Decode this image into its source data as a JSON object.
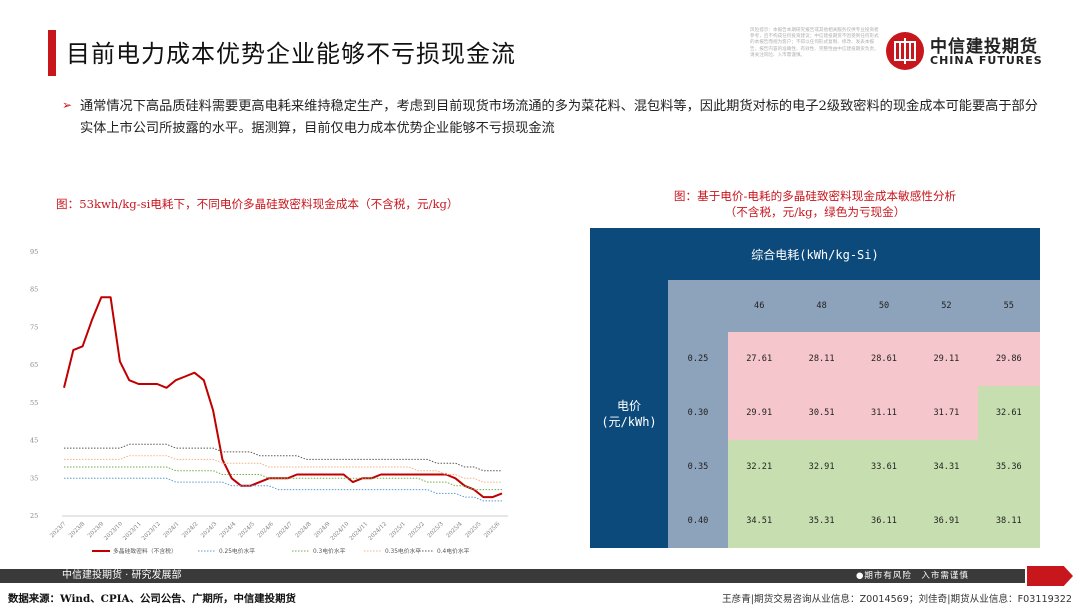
{
  "header": {
    "title": "目前电力成本优势企业能够不亏损现金流",
    "disclaimer": "风险提示：本报告本期研究报告或其他相关服务仅供专业投资者参考，且不构成任何投资建议；中信建投期货不因受到任何形式的本报告而视为客户；不得以任何形式复制、修改、发表本报告，报告内容的准确性、有效性、完整性由中信建投期货负责，请关注风险、入市需谨慎。",
    "disclaimer_label": "风险提示",
    "logo_cn": "中信建投期货",
    "logo_en": "CHINA FUTURES"
  },
  "bullet": {
    "symbol": "➢",
    "text": "通常情况下高品质硅料需要更高电耗来维持稳定生产，考虑到目前现货市场流通的多为菜花料、混包料等，因此期货对标的电子2级致密料的现金成本可能要高于部分实体上市公司所披露的水平。据测算，目前仅电力成本优势企业能够不亏损现金流"
  },
  "chart_title": "图：53kwh/kg-si电耗下，不同电价多晶硅致密料现金成本（不含税，元/kg）",
  "table_title_line1": "图：基于电价-电耗的多晶硅致密料现金成本敏感性分析",
  "table_title_line2": "（不含税，元/kg，绿色为亏现金）",
  "chart_data": {
    "type": "line",
    "y_ticks": [
      "25",
      "35",
      "45",
      "55",
      "65",
      "75",
      "85",
      "95"
    ],
    "ylim": [
      25,
      95
    ],
    "x_ticks": [
      "2023/7",
      "2023/8",
      "2023/9",
      "2023/10",
      "2023/11",
      "2023/12",
      "2024/1",
      "2024/2",
      "2024/3",
      "2024/4",
      "2024/5",
      "2024/6",
      "2024/7",
      "2024/8",
      "2024/9",
      "2024/10",
      "2024/11",
      "2024/12",
      "2025/1",
      "2025/2",
      "2025/3",
      "2025/4",
      "2025/5",
      "2025/6"
    ],
    "series": [
      {
        "name": "多晶硅致密料（不含税）",
        "color": "#c00000",
        "style": "solid",
        "values": [
          59,
          69,
          70,
          77,
          83,
          83,
          66,
          61,
          60,
          60,
          60,
          59,
          61,
          62,
          63,
          61,
          53,
          40,
          35,
          33,
          33,
          34,
          35,
          35,
          35,
          36,
          36,
          36,
          36,
          36,
          36,
          34,
          35,
          35,
          36,
          36,
          36,
          36,
          36,
          36,
          36,
          36,
          35,
          33,
          32,
          30,
          30,
          31
        ]
      },
      {
        "name": "0.25电价水平",
        "color": "#5b9bd5",
        "style": "dotted",
        "values": [
          35,
          35,
          35,
          35,
          35,
          35,
          35,
          35,
          35,
          35,
          35,
          35,
          34,
          34,
          34,
          34,
          34,
          34,
          33,
          33,
          33,
          33,
          33,
          32,
          32,
          32,
          32,
          32,
          32,
          32,
          32,
          32,
          32,
          32,
          32,
          32,
          32,
          32,
          32,
          32,
          31,
          31,
          31,
          30,
          30,
          29,
          29,
          29
        ]
      },
      {
        "name": "0.3电价水平",
        "color": "#70ad47",
        "style": "dotted",
        "values": [
          38,
          38,
          38,
          38,
          38,
          38,
          38,
          38,
          38,
          38,
          38,
          38,
          37,
          37,
          37,
          37,
          37,
          36,
          36,
          36,
          36,
          36,
          35,
          35,
          35,
          35,
          35,
          35,
          35,
          35,
          35,
          35,
          35,
          35,
          35,
          35,
          35,
          35,
          35,
          34,
          34,
          34,
          33,
          33,
          32,
          32,
          32,
          32
        ]
      },
      {
        "name": "0.35电价水平",
        "color": "#f4b183",
        "style": "dotted",
        "values": [
          40,
          40,
          40,
          40,
          40,
          40,
          40,
          41,
          41,
          41,
          41,
          41,
          40,
          40,
          40,
          40,
          40,
          39,
          39,
          39,
          39,
          39,
          38,
          38,
          38,
          38,
          38,
          38,
          38,
          38,
          38,
          38,
          38,
          38,
          38,
          38,
          38,
          38,
          37,
          37,
          37,
          36,
          36,
          35,
          35,
          34,
          34,
          34
        ]
      },
      {
        "name": "0.4电价水平",
        "color": "#595959",
        "style": "dotted",
        "values": [
          43,
          43,
          43,
          43,
          43,
          43,
          43,
          44,
          44,
          44,
          44,
          44,
          43,
          43,
          43,
          43,
          43,
          42,
          42,
          42,
          42,
          41,
          41,
          41,
          41,
          41,
          40,
          40,
          40,
          40,
          40,
          40,
          40,
          40,
          40,
          40,
          40,
          40,
          40,
          40,
          39,
          39,
          39,
          38,
          38,
          37,
          37,
          37
        ]
      }
    ]
  },
  "sensitivity_table": {
    "top_header": "综合电耗(kWh/kg-Si)",
    "left_header_line1": "电价",
    "left_header_line2": "(元/kWh)",
    "columns": [
      "46",
      "48",
      "50",
      "52",
      "55"
    ],
    "rows": [
      {
        "price": "0.25",
        "values": [
          "27.61",
          "28.11",
          "28.61",
          "29.11",
          "29.86"
        ]
      },
      {
        "price": "0.30",
        "values": [
          "29.91",
          "30.51",
          "31.11",
          "31.71",
          "32.61"
        ]
      },
      {
        "price": "0.35",
        "values": [
          "32.21",
          "32.91",
          "33.61",
          "34.31",
          "35.36"
        ]
      },
      {
        "price": "0.40",
        "values": [
          "34.51",
          "35.31",
          "36.11",
          "36.91",
          "38.11"
        ]
      }
    ],
    "colors": {
      "pink": "#f5c6cb",
      "green": "#c7dfb0",
      "navy": "#0d4a7c",
      "grey": "#8da3bb"
    },
    "cell_colors": [
      [
        "pink",
        "pink",
        "pink",
        "pink",
        "pink"
      ],
      [
        "pink",
        "pink",
        "pink",
        "pink",
        "green"
      ],
      [
        "green",
        "green",
        "green",
        "green",
        "green"
      ],
      [
        "green",
        "green",
        "green",
        "green",
        "green"
      ]
    ]
  },
  "footer": {
    "left": "中信建投期货 · 研究发展部",
    "right": "●期市有风险　入市需谨慎",
    "source": "数据来源：Wind、CPIA、公司公告、广期所，中信建投期货",
    "authors": "王彦青|期货交易咨询从业信息：Z0014569；刘佳奇|期货从业信息：F03119322"
  }
}
